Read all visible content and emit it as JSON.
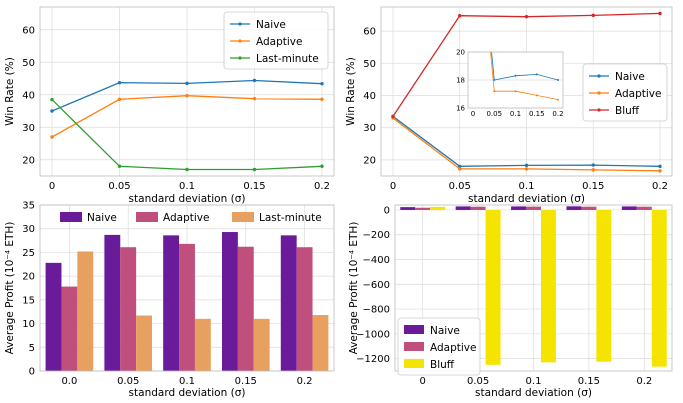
{
  "chart_data": [
    {
      "type": "line",
      "categories": [
        "0",
        "0.05",
        "0.1",
        "0.15",
        "0.2"
      ],
      "x": [
        0,
        0.05,
        0.1,
        0.15,
        0.2
      ],
      "series": [
        {
          "name": "Naive",
          "color": "#1f77b4",
          "values": [
            35,
            43.7,
            43.5,
            44.4,
            43.4
          ]
        },
        {
          "name": "Adaptive",
          "color": "#ff7f0e",
          "values": [
            27,
            38.6,
            39.7,
            38.8,
            38.6
          ]
        },
        {
          "name": "Last-minute",
          "color": "#2ca02c",
          "values": [
            38.5,
            18,
            17,
            17,
            18
          ]
        }
      ],
      "xlabel": "standard deviation (σ)",
      "ylabel": "Win Rate (%)",
      "ylim": [
        15,
        67
      ],
      "yticks": [
        20,
        30,
        40,
        50,
        60
      ],
      "grid": true,
      "legend": "top-right"
    },
    {
      "type": "line",
      "categories": [
        "0",
        "0.05",
        "0.1",
        "0.15",
        "0.2"
      ],
      "x": [
        0,
        0.05,
        0.1,
        0.15,
        0.2
      ],
      "series": [
        {
          "name": "Naive",
          "color": "#1f77b4",
          "values": [
            33.5,
            18,
            18.3,
            18.4,
            18
          ]
        },
        {
          "name": "Adaptive",
          "color": "#ff7f0e",
          "values": [
            33,
            17.2,
            17.2,
            16.9,
            16.6
          ]
        },
        {
          "name": "Bluff",
          "color": "#d62728",
          "values": [
            33.5,
            64.8,
            64.5,
            64.9,
            65.5
          ]
        }
      ],
      "xlabel": "standard deviation (σ)",
      "ylabel": "Win Rate (%)",
      "ylim": [
        15,
        67.5
      ],
      "yticks": [
        20,
        30,
        40,
        50,
        60
      ],
      "grid": true,
      "legend": "center-right",
      "inset": {
        "xticks": [
          "0",
          "0.05",
          "0.1",
          "0.15",
          "0.2"
        ],
        "yticks": [
          "16",
          "18",
          "20"
        ],
        "ylim": [
          16,
          20
        ]
      }
    },
    {
      "type": "bar",
      "categories": [
        "0.0",
        "0.05",
        "0.1",
        "0.15",
        "0.2"
      ],
      "series": [
        {
          "name": "Naive",
          "color": "#6a1b9a",
          "values": [
            22.8,
            28.7,
            28.6,
            29.3,
            28.6
          ]
        },
        {
          "name": "Adaptive",
          "color": "#bf4f7c",
          "values": [
            17.8,
            26.1,
            26.8,
            26.2,
            26.1
          ]
        },
        {
          "name": "Last-minute",
          "color": "#e8a060",
          "values": [
            25.2,
            11.7,
            11.0,
            11.0,
            11.8
          ]
        }
      ],
      "xlabel": "standard deviation (σ)",
      "ylabel": "Average Profit (10⁻⁴ ETH)",
      "ylim": [
        0,
        35
      ],
      "yticks": [
        0,
        5,
        10,
        15,
        20,
        25,
        30,
        35
      ],
      "grid": true,
      "legend": "top"
    },
    {
      "type": "bar",
      "categories": [
        "0",
        "0.05",
        "0.1",
        "0.15",
        "0.2"
      ],
      "series": [
        {
          "name": "Naive",
          "color": "#6a1b9a",
          "values": [
            22.8,
            28.7,
            28.6,
            29.3,
            28.6
          ]
        },
        {
          "name": "Adaptive",
          "color": "#bf4f7c",
          "values": [
            17.8,
            26.1,
            26.8,
            26.2,
            26.1
          ]
        },
        {
          "name": "Bluff",
          "color": "#f5e400",
          "values": [
            25,
            -1250,
            -1230,
            -1225,
            -1265
          ]
        }
      ],
      "xlabel": "standard deviation (σ)",
      "ylabel": "Average Profit (10⁻⁴ ETH)",
      "ylim": [
        -1300,
        40
      ],
      "yticks": [
        -1200,
        -1000,
        -800,
        -600,
        -400,
        -200,
        0
      ],
      "grid": true,
      "legend": "bottom-left"
    }
  ]
}
